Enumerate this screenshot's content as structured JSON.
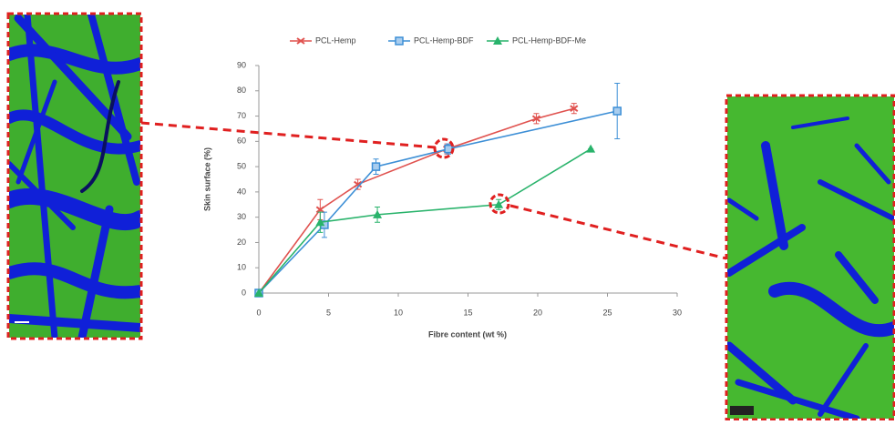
{
  "chart_data": {
    "type": "line",
    "x_label": "Fibre content (wt %)",
    "y_label": "Skin surface (%)",
    "xlim": [
      0,
      30
    ],
    "xticks": [
      0,
      5,
      10,
      15,
      20,
      25,
      30
    ],
    "ylim": [
      0,
      90
    ],
    "yticks": [
      0,
      10,
      20,
      30,
      40,
      50,
      60,
      70,
      80,
      90
    ],
    "grid": false,
    "legend": "top",
    "series": [
      {
        "name": "PCL-Hemp",
        "color": "#e0524f",
        "marker": "dash",
        "x": [
          0,
          4.4,
          7.1,
          13.5,
          19.9,
          22.6
        ],
        "values": [
          0,
          33,
          43,
          57,
          69,
          73
        ],
        "errors": [
          0,
          4,
          2,
          2,
          2,
          2
        ]
      },
      {
        "name": "PCL-Hemp-BDF",
        "color": "#3d8fd6",
        "marker": "square",
        "x": [
          0,
          4.7,
          8.4,
          13.6,
          25.7
        ],
        "values": [
          0,
          27,
          50,
          57,
          72
        ],
        "errors": [
          0,
          5,
          3,
          2,
          11
        ]
      },
      {
        "name": "PCL-Hemp-BDF-Me",
        "color": "#29b36b",
        "marker": "triangle",
        "x": [
          0,
          4.4,
          8.5,
          17.2,
          23.8
        ],
        "values": [
          0,
          28,
          31,
          35,
          57
        ],
        "errors": [
          0,
          4,
          3,
          2,
          0
        ]
      }
    ]
  }
}
